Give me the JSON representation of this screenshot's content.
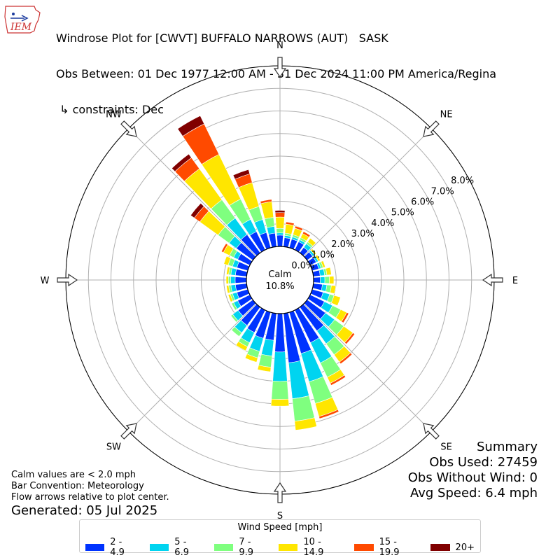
{
  "header": {
    "logo_text": "IEM",
    "title_line1": "Windrose Plot for [CWVT] BUFFALO NARROWS (AUT)   SASK",
    "title_line2": "Obs Between: 01 Dec 1977 12:00 AM - 31 Dec 2024 11:00 PM America/Regina",
    "title_line3": " ↳ constraints: Dec"
  },
  "summary": {
    "heading": "Summary",
    "obs_used": "Obs Used: 27459",
    "obs_without_wind": "Obs Without Wind: 0",
    "avg_speed": "Avg Speed: 6.4 mph"
  },
  "notes": {
    "line1": "Calm values are < 2.0 mph",
    "line2": "Bar Convention: Meteorology",
    "line3": "Flow arrows relative to plot center."
  },
  "generated": "Generated: 05 Jul 2025",
  "legend": {
    "title": "Wind Speed [mph]",
    "items": [
      {
        "label": "2 - 4.9",
        "color": "#0033ff"
      },
      {
        "label": "5 - 6.9",
        "color": "#00d4f0"
      },
      {
        "label": "7 - 9.9",
        "color": "#7fff7f"
      },
      {
        "label": "10 - 14.9",
        "color": "#ffe600"
      },
      {
        "label": "15 - 19.9",
        "color": "#ff4a00"
      },
      {
        "label": "20+",
        "color": "#800000"
      }
    ]
  },
  "chart_data": {
    "type": "windrose",
    "calm_label": "Calm",
    "calm_value": "10.8%",
    "radial_max": 8.0,
    "radial_ticks": [
      "0.0%",
      "1.0%",
      "2.0%",
      "3.0%",
      "4.0%",
      "5.0%",
      "6.0%",
      "7.0%",
      "8.0%"
    ],
    "compass_labels": [
      "N",
      "NE",
      "E",
      "SE",
      "S",
      "SW",
      "W",
      "NW"
    ],
    "bin_labels": [
      "2 - 4.9",
      "5 - 6.9",
      "7 - 9.9",
      "10 - 14.9",
      "15 - 19.9",
      "20+"
    ],
    "bin_colors": [
      "#0033ff",
      "#00d4f0",
      "#7fff7f",
      "#ffe600",
      "#ff4a00",
      "#800000"
    ],
    "directions_deg": [
      0,
      10,
      20,
      30,
      40,
      50,
      60,
      70,
      80,
      90,
      100,
      110,
      120,
      130,
      140,
      150,
      160,
      170,
      180,
      190,
      200,
      210,
      220,
      230,
      240,
      250,
      260,
      270,
      280,
      290,
      300,
      310,
      320,
      330,
      340,
      350
    ],
    "cumulative_percent": [
      [
        0.5,
        0.6,
        0.8,
        1.3,
        1.5,
        1.6
      ],
      [
        0.4,
        0.5,
        0.6,
        1.0,
        1.1,
        1.1
      ],
      [
        0.4,
        0.5,
        0.6,
        0.9,
        1.0,
        1.0
      ],
      [
        0.4,
        0.5,
        0.6,
        0.8,
        0.9,
        0.9
      ],
      [
        0.3,
        0.5,
        0.6,
        0.8,
        0.8,
        0.8
      ],
      [
        0.3,
        0.4,
        0.4,
        0.5,
        0.5,
        0.5
      ],
      [
        0.3,
        0.4,
        0.4,
        0.5,
        0.5,
        0.5
      ],
      [
        0.3,
        0.4,
        0.5,
        0.6,
        0.6,
        0.6
      ],
      [
        0.3,
        0.5,
        0.6,
        0.8,
        0.8,
        0.8
      ],
      [
        0.3,
        0.5,
        0.7,
        0.9,
        0.9,
        0.9
      ],
      [
        0.4,
        0.6,
        0.8,
        1.0,
        1.0,
        1.0
      ],
      [
        0.5,
        0.8,
        1.0,
        1.3,
        1.3,
        1.3
      ],
      [
        0.7,
        1.1,
        1.5,
        1.8,
        1.9,
        1.9
      ],
      [
        1.0,
        1.5,
        2.0,
        2.5,
        2.6,
        2.6
      ],
      [
        1.3,
        2.0,
        2.6,
        3.0,
        3.1,
        3.1
      ],
      [
        1.6,
        2.6,
        3.3,
        3.6,
        3.7,
        3.7
      ],
      [
        1.9,
        3.2,
        4.2,
        4.8,
        4.9,
        4.9
      ],
      [
        2.2,
        3.8,
        4.8,
        5.2,
        5.2,
        5.2
      ],
      [
        1.7,
        3.0,
        3.8,
        4.1,
        4.1,
        4.1
      ],
      [
        1.2,
        1.9,
        2.4,
        2.6,
        2.6,
        2.6
      ],
      [
        1.2,
        1.8,
        2.1,
        2.3,
        2.3,
        2.3
      ],
      [
        1.1,
        1.6,
        1.8,
        2.0,
        2.0,
        2.0
      ],
      [
        1.0,
        1.4,
        1.6,
        1.6,
        1.6,
        1.6
      ],
      [
        0.8,
        1.1,
        1.2,
        1.2,
        1.2,
        1.2
      ],
      [
        0.6,
        0.8,
        0.9,
        0.9,
        0.9,
        0.9
      ],
      [
        0.5,
        0.7,
        0.8,
        0.9,
        0.9,
        0.9
      ],
      [
        0.5,
        0.7,
        0.8,
        0.9,
        0.9,
        0.9
      ],
      [
        0.5,
        0.7,
        0.8,
        0.9,
        0.9,
        0.9
      ],
      [
        0.5,
        0.7,
        0.8,
        0.9,
        0.9,
        0.9
      ],
      [
        0.5,
        0.7,
        0.9,
        1.1,
        1.1,
        1.1
      ],
      [
        0.6,
        0.8,
        1.0,
        1.3,
        1.4,
        1.4
      ],
      [
        0.9,
        1.3,
        1.9,
        2.9,
        3.2,
        3.4
      ],
      [
        1.0,
        1.9,
        2.9,
        4.6,
        5.2,
        5.4
      ],
      [
        0.9,
        1.5,
        2.5,
        4.7,
        6.2,
        6.6
      ],
      [
        0.7,
        1.3,
        1.9,
        3.0,
        3.4,
        3.6
      ],
      [
        0.6,
        0.9,
        1.3,
        2.0,
        2.1,
        2.1
      ]
    ]
  }
}
